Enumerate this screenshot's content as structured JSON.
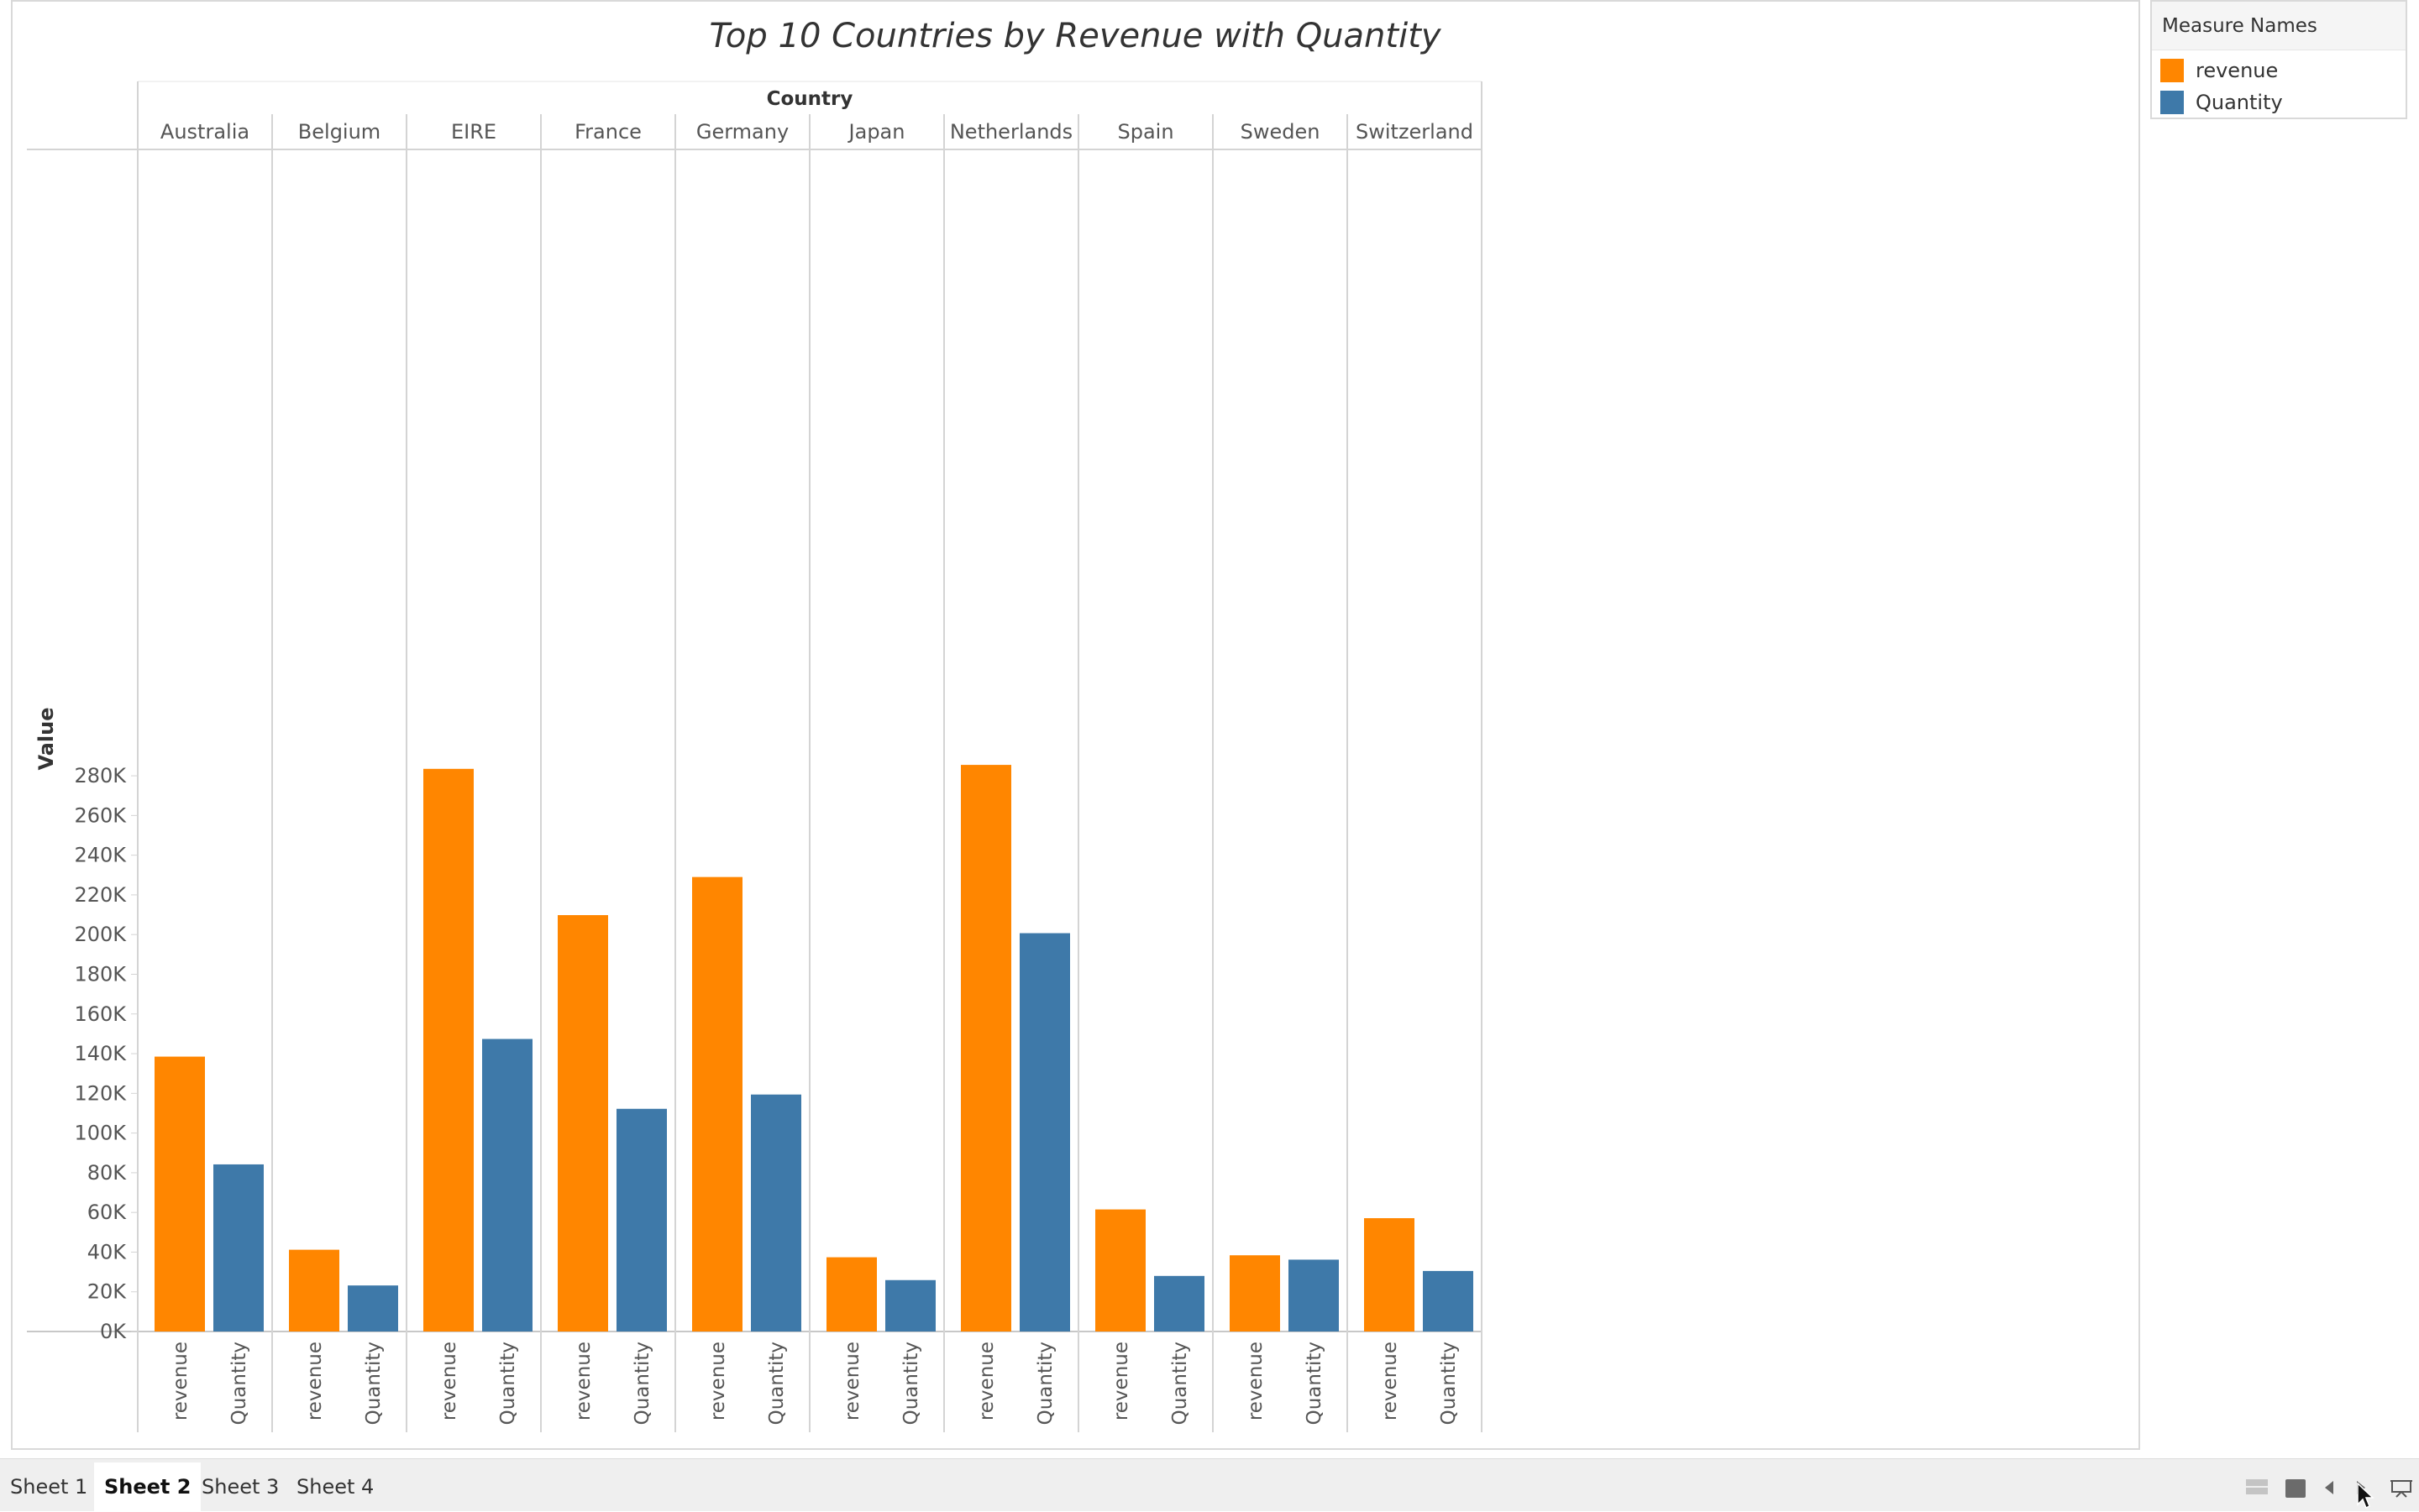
{
  "chart_data": {
    "type": "bar",
    "title": "Top 10 Countries by Revenue with Quantity",
    "column_header": "Country",
    "ylabel": "Value",
    "ylim": [
      0,
      300000
    ],
    "y_ticks": [
      {
        "value": 0,
        "label": "0K"
      },
      {
        "value": 20000,
        "label": "20K"
      },
      {
        "value": 40000,
        "label": "40K"
      },
      {
        "value": 60000,
        "label": "60K"
      },
      {
        "value": 80000,
        "label": "80K"
      },
      {
        "value": 100000,
        "label": "100K"
      },
      {
        "value": 120000,
        "label": "120K"
      },
      {
        "value": 140000,
        "label": "140K"
      },
      {
        "value": 160000,
        "label": "160K"
      },
      {
        "value": 180000,
        "label": "180K"
      },
      {
        "value": 200000,
        "label": "200K"
      },
      {
        "value": 220000,
        "label": "220K"
      },
      {
        "value": 240000,
        "label": "240K"
      },
      {
        "value": 260000,
        "label": "260K"
      },
      {
        "value": 280000,
        "label": "280K"
      }
    ],
    "grid": false,
    "legend_position": "top-right",
    "categories": [
      "Australia",
      "Belgium",
      "EIRE",
      "France",
      "Germany",
      "Japan",
      "Netherlands",
      "Spain",
      "Sweden",
      "Switzerland"
    ],
    "series": [
      {
        "name": "revenue",
        "color": "#ff8600",
        "values": [
          138500,
          41200,
          283500,
          209800,
          229000,
          37400,
          285500,
          61500,
          38400,
          57100
        ]
      },
      {
        "name": "Quantity",
        "color": "#3e79a9",
        "values": [
          84200,
          23200,
          147400,
          112200,
          119400,
          25900,
          200700,
          28000,
          36200,
          30500
        ]
      }
    ]
  },
  "legend": {
    "title": "Measure Names",
    "items": [
      {
        "label": "revenue",
        "color": "#ff8600"
      },
      {
        "label": "Quantity",
        "color": "#3e79a9"
      }
    ]
  },
  "tabs": [
    {
      "label": "Sheet 1",
      "active": false
    },
    {
      "label": "Sheet 2",
      "active": true
    },
    {
      "label": "Sheet 3",
      "active": false
    },
    {
      "label": "Sheet 4",
      "active": false
    }
  ],
  "controls": {
    "show_sheet_sorter": "grid-icon",
    "show_filmstrip": "filmstrip-icon",
    "previous_sheet": "caret-left-icon",
    "next_sheet": "caret-right-icon",
    "presentation_mode": "presentation-icon"
  }
}
